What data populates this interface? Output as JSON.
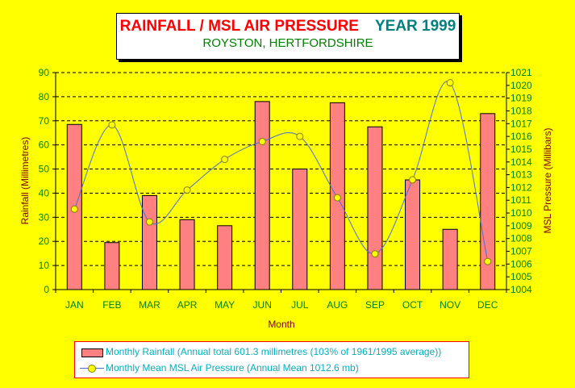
{
  "title": {
    "main": "RAINFALL / MSL AIR PRESSURE",
    "year": "YEAR 1999",
    "location": "ROYSTON, HERTFORDSHIRE"
  },
  "colors": {
    "background": "#ffff00",
    "bars": "#ff8080",
    "line": "#4a6cd4",
    "markers": "#ffff00",
    "axis_text": "#008000",
    "axis_title": "#800000"
  },
  "chart_data": {
    "type": "bar",
    "categories": [
      "JAN",
      "FEB",
      "MAR",
      "APR",
      "MAY",
      "JUN",
      "JUL",
      "AUG",
      "SEP",
      "OCT",
      "NOV",
      "DEC"
    ],
    "xlabel": "Month",
    "ylabel": "Rainfall (Millimetres)",
    "y2label": "MSL Pressure (Millibars)",
    "ylim": [
      0,
      90
    ],
    "yticks": [
      0,
      10,
      20,
      30,
      40,
      50,
      60,
      70,
      80,
      90
    ],
    "y2lim": [
      1004,
      1021
    ],
    "y2ticks": [
      1004,
      1005,
      1006,
      1007,
      1008,
      1009,
      1010,
      1011,
      1012,
      1013,
      1014,
      1015,
      1016,
      1017,
      1018,
      1019,
      1020,
      1021
    ],
    "grid": true,
    "legend_position": "bottom",
    "series": [
      {
        "name": "Monthly Rainfall (Annual total 601.3 millimetres (103% of 1961/1995 average))",
        "type": "bar",
        "axis": "left",
        "values": [
          68.5,
          19.5,
          39.0,
          29.0,
          26.5,
          78.0,
          50.0,
          77.5,
          67.5,
          45.5,
          25.0,
          73.0
        ]
      },
      {
        "name": "Monthly Mean MSL Air Pressure (Annual Mean 1012.6 mb)",
        "type": "line",
        "axis": "right",
        "values": [
          1010.3,
          1016.9,
          1009.3,
          1011.8,
          1014.2,
          1015.6,
          1016.0,
          1011.2,
          1006.8,
          1012.6,
          1020.2,
          1006.2
        ]
      }
    ]
  }
}
